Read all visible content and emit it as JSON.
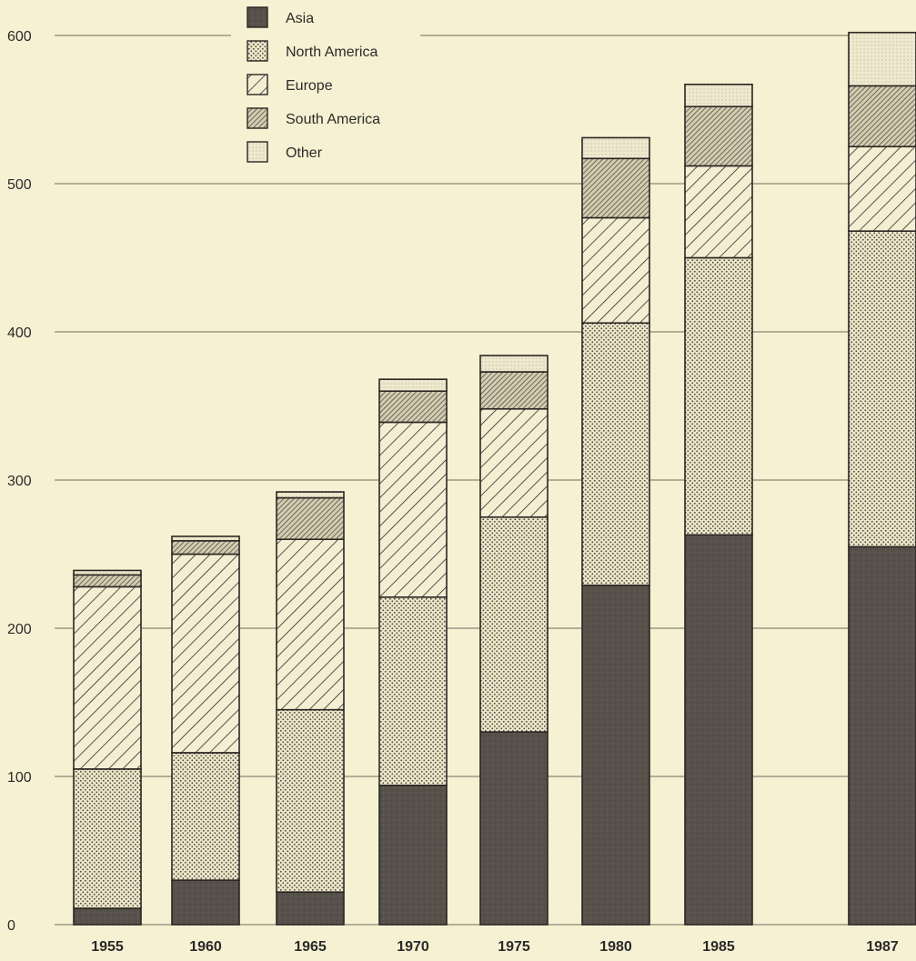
{
  "chart_data": {
    "type": "bar",
    "stacked": true,
    "title": "",
    "xlabel": "",
    "ylabel": "",
    "categories": [
      "1955",
      "1960",
      "1965",
      "1970",
      "1975",
      "1980",
      "1985",
      "1987"
    ],
    "ylim": [
      0,
      600
    ],
    "yticks": [
      "0",
      "100",
      "200",
      "300",
      "400",
      "500",
      "600"
    ],
    "grid": true,
    "legend_position": "top-left",
    "series": [
      {
        "name": "Asia",
        "pattern": "solid-dark",
        "color": "#555048",
        "values": [
          11,
          30,
          22,
          94,
          130,
          229,
          263,
          255
        ]
      },
      {
        "name": "North America",
        "pattern": "dots",
        "color": "#e6dfc2",
        "values": [
          94,
          86,
          123,
          127,
          145,
          177,
          187,
          213
        ]
      },
      {
        "name": "Europe",
        "pattern": "diagonal-lines",
        "color": "#f2ecd0",
        "values": [
          123,
          134,
          115,
          118,
          73,
          71,
          62,
          57
        ]
      },
      {
        "name": "South America",
        "pattern": "dense-diagonal",
        "color": "#c9c2a6",
        "values": [
          8,
          9,
          28,
          21,
          25,
          40,
          40,
          41
        ]
      },
      {
        "name": "Other",
        "pattern": "light-dots",
        "color": "#ece6cb",
        "values": [
          3,
          3,
          4,
          8,
          11,
          14,
          15,
          36
        ]
      }
    ]
  }
}
